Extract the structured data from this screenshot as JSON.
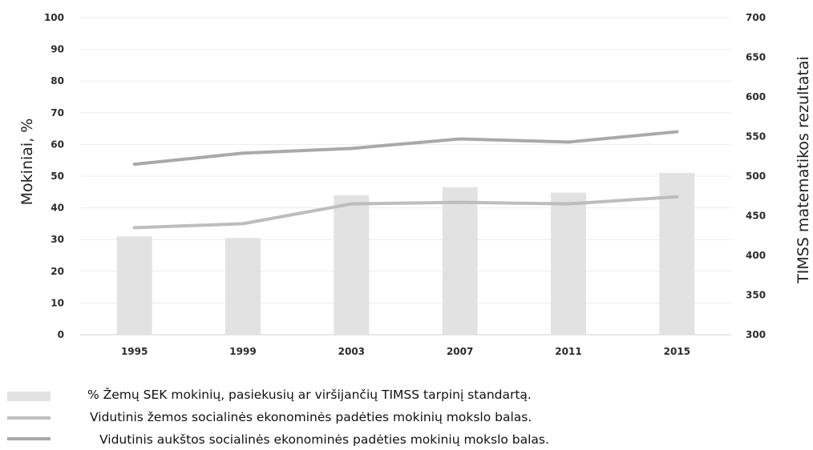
{
  "chart_data": {
    "type": "bar",
    "categories": [
      "1995",
      "1999",
      "2003",
      "2007",
      "2011",
      "2015"
    ],
    "left_axis": {
      "label": "Mokiniai, %",
      "ylim": [
        0,
        100
      ],
      "ticks": [
        "0",
        "10",
        "20",
        "30",
        "40",
        "50",
        "60",
        "70",
        "80",
        "90",
        "100"
      ]
    },
    "right_axis": {
      "label": "TIMSS matematikos rezultatai",
      "ylim": [
        300,
        700
      ],
      "ticks": [
        "300",
        "350",
        "400",
        "450",
        "500",
        "550",
        "600",
        "650",
        "700"
      ]
    },
    "series": [
      {
        "name": "% Žemų SEK mokinių,  pasiekusių ar viršijančių TIMSS tarpinį standartą.",
        "kind": "bar",
        "axis": "left",
        "values": [
          31,
          30.5,
          44,
          46.5,
          44.8,
          51
        ],
        "color": "#e2e2e2"
      },
      {
        "name": "Vidutinis žemos socialinės ekonominės padėties mokinių mokslo balas.",
        "kind": "line",
        "axis": "right",
        "values": [
          435,
          440,
          465,
          467,
          465,
          474
        ],
        "color": "#bdbdbd"
      },
      {
        "name": "Vidutinis aukštos socialinės ekonominės padėties mokinių mokslo balas.",
        "kind": "line",
        "axis": "right",
        "values": [
          515,
          529,
          535,
          547,
          543,
          556
        ],
        "color": "#a9a9a9"
      }
    ],
    "grid": true,
    "legend_position": "bottom"
  }
}
